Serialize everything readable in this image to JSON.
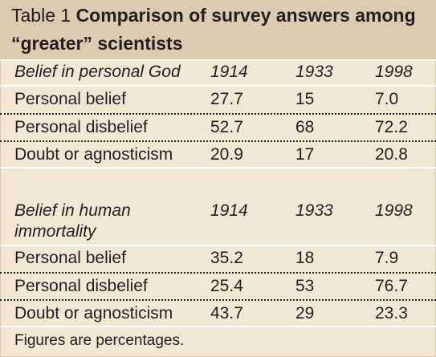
{
  "table": {
    "label": "Table 1",
    "title_bold": "Comparison of survey answers among",
    "title_line2": "“greater” scientists",
    "section1": {
      "header": [
        "Belief in personal God",
        "1914",
        "1933",
        "1998"
      ],
      "rows": [
        [
          "Personal belief",
          "27.7",
          "15",
          "7.0"
        ],
        [
          "Personal disbelief",
          "52.7",
          "68",
          "72.2"
        ],
        [
          "Doubt or agnosticism",
          "20.9",
          "17",
          "20.8"
        ]
      ]
    },
    "section2": {
      "header_line1": "Belief in human",
      "header_line2": "immortality",
      "years": [
        "1914",
        "1933",
        "1998"
      ],
      "rows": [
        [
          "Personal belief",
          "35.2",
          "18",
          "7.9"
        ],
        [
          "Personal disbelief",
          "25.4",
          "53",
          "76.7"
        ],
        [
          "Doubt or agnosticism",
          "43.7",
          "29",
          "23.3"
        ]
      ]
    },
    "footnote": "Figures are percentages."
  }
}
